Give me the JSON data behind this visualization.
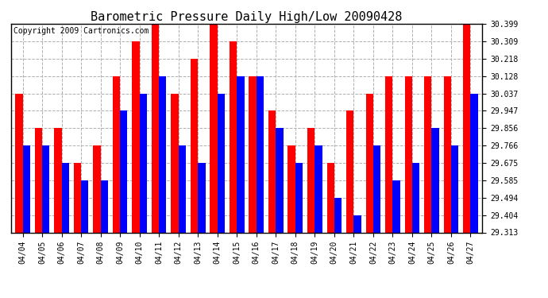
{
  "title": "Barometric Pressure Daily High/Low 20090428",
  "copyright": "Copyright 2009 Cartronics.com",
  "dates": [
    "04/04",
    "04/05",
    "04/06",
    "04/07",
    "04/08",
    "04/09",
    "04/10",
    "04/11",
    "04/12",
    "04/13",
    "04/14",
    "04/15",
    "04/16",
    "04/17",
    "04/18",
    "04/19",
    "04/20",
    "04/21",
    "04/22",
    "04/23",
    "04/24",
    "04/25",
    "04/26",
    "04/27"
  ],
  "highs": [
    30.037,
    29.856,
    29.856,
    29.675,
    29.766,
    30.128,
    30.309,
    30.399,
    30.037,
    30.218,
    30.399,
    30.309,
    30.128,
    29.947,
    29.766,
    29.856,
    29.675,
    29.947,
    30.037,
    30.128,
    30.128,
    30.128,
    30.128,
    30.399
  ],
  "lows": [
    29.766,
    29.766,
    29.675,
    29.585,
    29.585,
    29.947,
    30.037,
    30.128,
    29.766,
    29.675,
    30.037,
    30.128,
    30.128,
    29.856,
    29.675,
    29.766,
    29.494,
    29.404,
    29.766,
    29.585,
    29.675,
    29.856,
    29.766,
    30.037
  ],
  "high_color": "#ff0000",
  "low_color": "#0000ff",
  "bg_color": "#ffffff",
  "grid_color": "#b0b0b0",
  "yticks": [
    29.313,
    29.404,
    29.494,
    29.585,
    29.675,
    29.766,
    29.856,
    29.947,
    30.037,
    30.128,
    30.218,
    30.309,
    30.399
  ],
  "ymin": 29.313,
  "ymax": 30.399,
  "title_fontsize": 11,
  "copyright_fontsize": 7,
  "bar_width": 0.38
}
